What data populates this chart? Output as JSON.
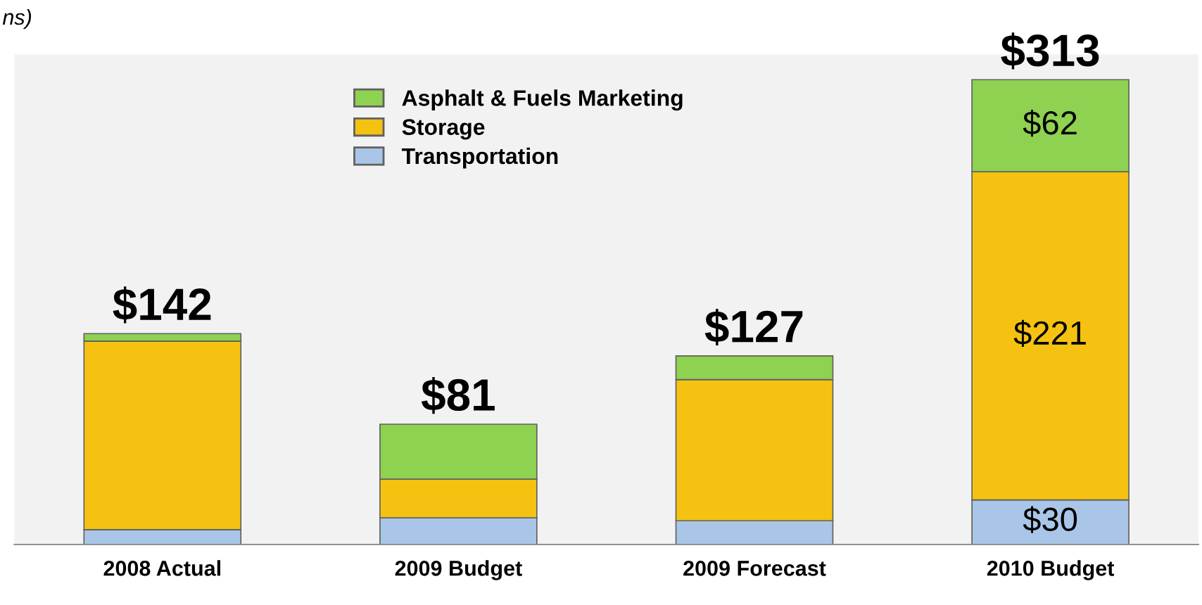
{
  "chart_data": {
    "type": "bar",
    "stacked": true,
    "categories": [
      "2008 Actual",
      "2009 Budget",
      "2009 Forecast",
      "2010 Budget"
    ],
    "series": [
      {
        "name": "Transportation",
        "color": "#a9c6e8",
        "values": [
          10,
          18,
          16,
          30
        ],
        "value_labels": [
          null,
          null,
          null,
          "$30"
        ]
      },
      {
        "name": "Storage",
        "color": "#f5c211",
        "values": [
          127,
          26,
          95,
          221
        ],
        "value_labels": [
          null,
          null,
          null,
          "$221"
        ]
      },
      {
        "name": "Asphalt & Fuels Marketing",
        "color": "#8fd150",
        "values": [
          5,
          37,
          16,
          62
        ],
        "value_labels": [
          null,
          null,
          null,
          "$62"
        ]
      }
    ],
    "totals": [
      "$142",
      "$81",
      "$127",
      "$313"
    ],
    "ylim": [
      0,
      330
    ],
    "tick_labels": "x",
    "grid": false,
    "legend": "top",
    "annotations": [
      "ns)"
    ]
  }
}
